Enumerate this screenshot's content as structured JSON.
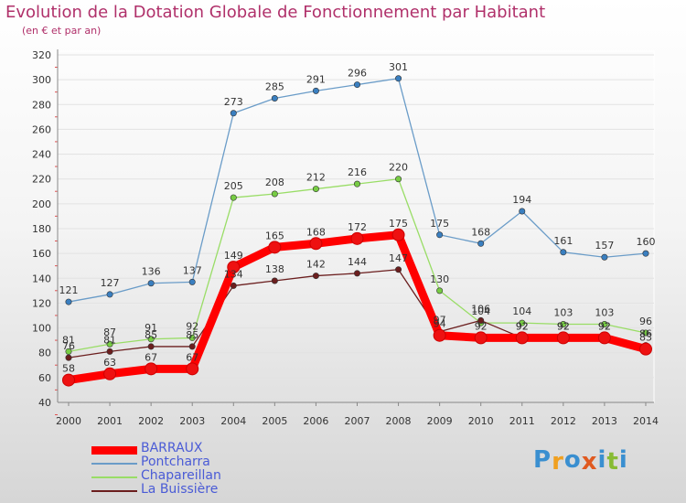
{
  "title": "Evolution de la Dotation Globale de Fonctionnement par Habitant",
  "subtitle": "(en € et par an)",
  "logo_text": "Proxiti",
  "colors": {
    "title": "#b0306a",
    "axis_text": "#333333",
    "legend_text": "#4a5bd6"
  },
  "chart_data": {
    "type": "line",
    "title": "Evolution de la Dotation Globale de Fonctionnement par Habitant",
    "subtitle": "(en € et par an)",
    "xlabel": "",
    "ylabel": "",
    "x": [
      "2000",
      "2001",
      "2002",
      "2003",
      "2004",
      "2005",
      "2006",
      "2007",
      "2008",
      "2009",
      "2010",
      "2011",
      "2012",
      "2013",
      "2014"
    ],
    "ylim": [
      40,
      320
    ],
    "yticks": [
      40,
      60,
      80,
      100,
      120,
      140,
      160,
      180,
      200,
      220,
      240,
      260,
      280,
      300,
      320
    ],
    "series": [
      {
        "name": "BARRAUX",
        "color": "#ff0000",
        "point_color": "#ee1111",
        "emphasis": "bold",
        "values": [
          58,
          63,
          67,
          67,
          149,
          165,
          168,
          172,
          175,
          94,
          92,
          92,
          92,
          92,
          83
        ]
      },
      {
        "name": "Pontcharra",
        "color": "#6a9cc8",
        "point_color": "#3a7fc0",
        "values": [
          121,
          127,
          136,
          137,
          273,
          285,
          291,
          296,
          301,
          175,
          168,
          194,
          161,
          157,
          160
        ]
      },
      {
        "name": "Chapareillan",
        "color": "#99dd66",
        "point_color": "#77cc44",
        "values": [
          81,
          87,
          91,
          92,
          205,
          208,
          212,
          216,
          220,
          130,
          104,
          104,
          103,
          103,
          96
        ]
      },
      {
        "name": "La Buissière",
        "color": "#6b1e1e",
        "point_color": "#6b1e1e",
        "values": [
          76,
          81,
          85,
          85,
          134,
          138,
          142,
          144,
          147,
          97,
          106,
          92,
          92,
          92,
          86
        ]
      }
    ],
    "legend_position": "bottom-left"
  }
}
